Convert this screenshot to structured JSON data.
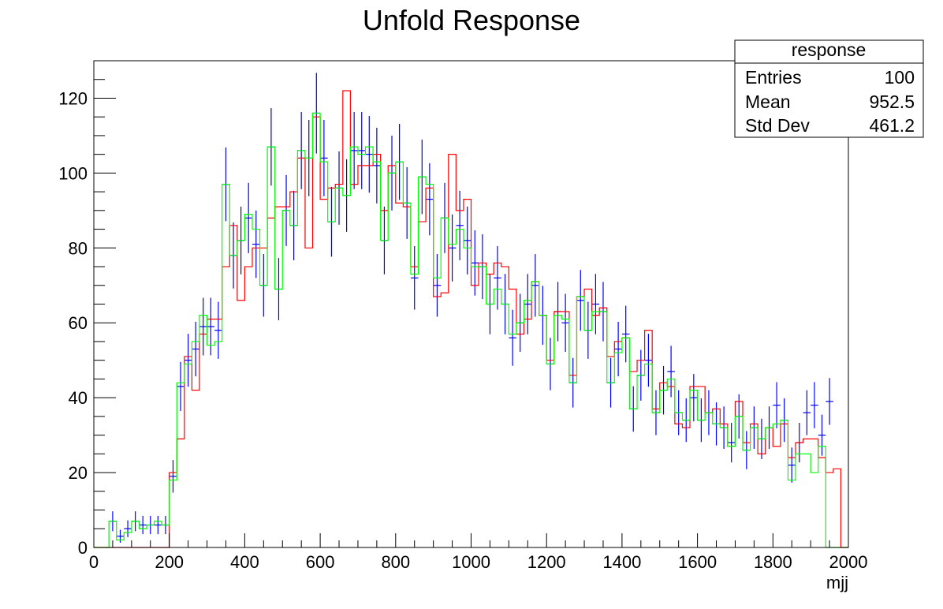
{
  "chart_data": {
    "type": "histogram",
    "title": "Unfold Response",
    "xlabel": "mjj",
    "ylabel": "",
    "xlim": [
      0,
      2000
    ],
    "ylim": [
      0,
      130
    ],
    "grid": false,
    "x_ticks": [
      0,
      200,
      400,
      600,
      800,
      1000,
      1200,
      1400,
      1600,
      1800,
      2000
    ],
    "y_ticks": [
      0,
      20,
      40,
      60,
      80,
      100,
      120
    ],
    "bin_width": 20,
    "stats_box": {
      "title": "response",
      "rows": [
        {
          "label": "Entries",
          "value": "100"
        },
        {
          "label": "Mean",
          "value": "952.5"
        },
        {
          "label": "Std Dev",
          "value": "461.2"
        }
      ]
    },
    "series": [
      {
        "style": "points-with-errors",
        "color": "#0000ff",
        "values": [
          0,
          0,
          7,
          3,
          5,
          7,
          6,
          6,
          6,
          6,
          19,
          43,
          50,
          53,
          59,
          59,
          58,
          97,
          78,
          82,
          88,
          81,
          70,
          107,
          69,
          90,
          86,
          106,
          104,
          116,
          104,
          87,
          96,
          94,
          106,
          106,
          105,
          102,
          82,
          100,
          103,
          92,
          72,
          99,
          93,
          70,
          88,
          80,
          86,
          82,
          76,
          75,
          65,
          72,
          65,
          56,
          60,
          65,
          70,
          62,
          49,
          63,
          60,
          44,
          66,
          58,
          65,
          63,
          44,
          53,
          57,
          37,
          46,
          50,
          36,
          42,
          47,
          36,
          34,
          40,
          34,
          36,
          33,
          32,
          28,
          35,
          26,
          32,
          29,
          32,
          38,
          34,
          22,
          28,
          36,
          38,
          30,
          39,
          0,
          0
        ]
      },
      {
        "style": "step",
        "color": "#ff0000",
        "values": [
          0,
          0,
          0,
          0,
          0,
          0,
          0,
          0,
          0,
          0,
          20,
          29,
          51,
          42,
          57,
          61,
          61,
          75,
          86,
          66,
          75,
          80,
          80,
          88,
          91,
          91,
          95,
          104,
          80,
          115,
          93,
          96,
          97,
          122,
          97,
          102,
          102,
          105,
          90,
          102,
          92,
          91,
          75,
          87,
          96,
          67,
          68,
          105,
          90,
          93,
          70,
          76,
          73,
          76,
          75,
          69,
          57,
          61,
          71,
          62,
          50,
          63,
          63,
          46,
          67,
          69,
          62,
          64,
          51,
          55,
          56,
          47,
          50,
          58,
          37,
          44,
          43,
          33,
          32,
          43,
          43,
          36,
          37,
          33,
          27,
          39,
          28,
          33,
          25,
          32,
          27,
          33,
          24,
          28,
          29,
          29,
          24,
          20,
          21,
          0
        ]
      },
      {
        "style": "step",
        "color": "#00ff00",
        "values": [
          0,
          0,
          7,
          2,
          4,
          7,
          5,
          6,
          7,
          6,
          18,
          44,
          49,
          55,
          62,
          54,
          55,
          97,
          78,
          82,
          89,
          85,
          70,
          107,
          69,
          90,
          86,
          106,
          104,
          116,
          103,
          87,
          96,
          94,
          107,
          105,
          107,
          103,
          82,
          100,
          103,
          92,
          73,
          99,
          97,
          72,
          88,
          81,
          85,
          80,
          75,
          75,
          65,
          69,
          65,
          57,
          60,
          66,
          71,
          62,
          49,
          62,
          61,
          44,
          67,
          58,
          63,
          63,
          44,
          52,
          56,
          37,
          46,
          49,
          36,
          42,
          45,
          36,
          34,
          42,
          34,
          36,
          33,
          32,
          27,
          35,
          26,
          32,
          29,
          32,
          33,
          34,
          18,
          25,
          25,
          20,
          27,
          0,
          0,
          0
        ]
      }
    ]
  }
}
